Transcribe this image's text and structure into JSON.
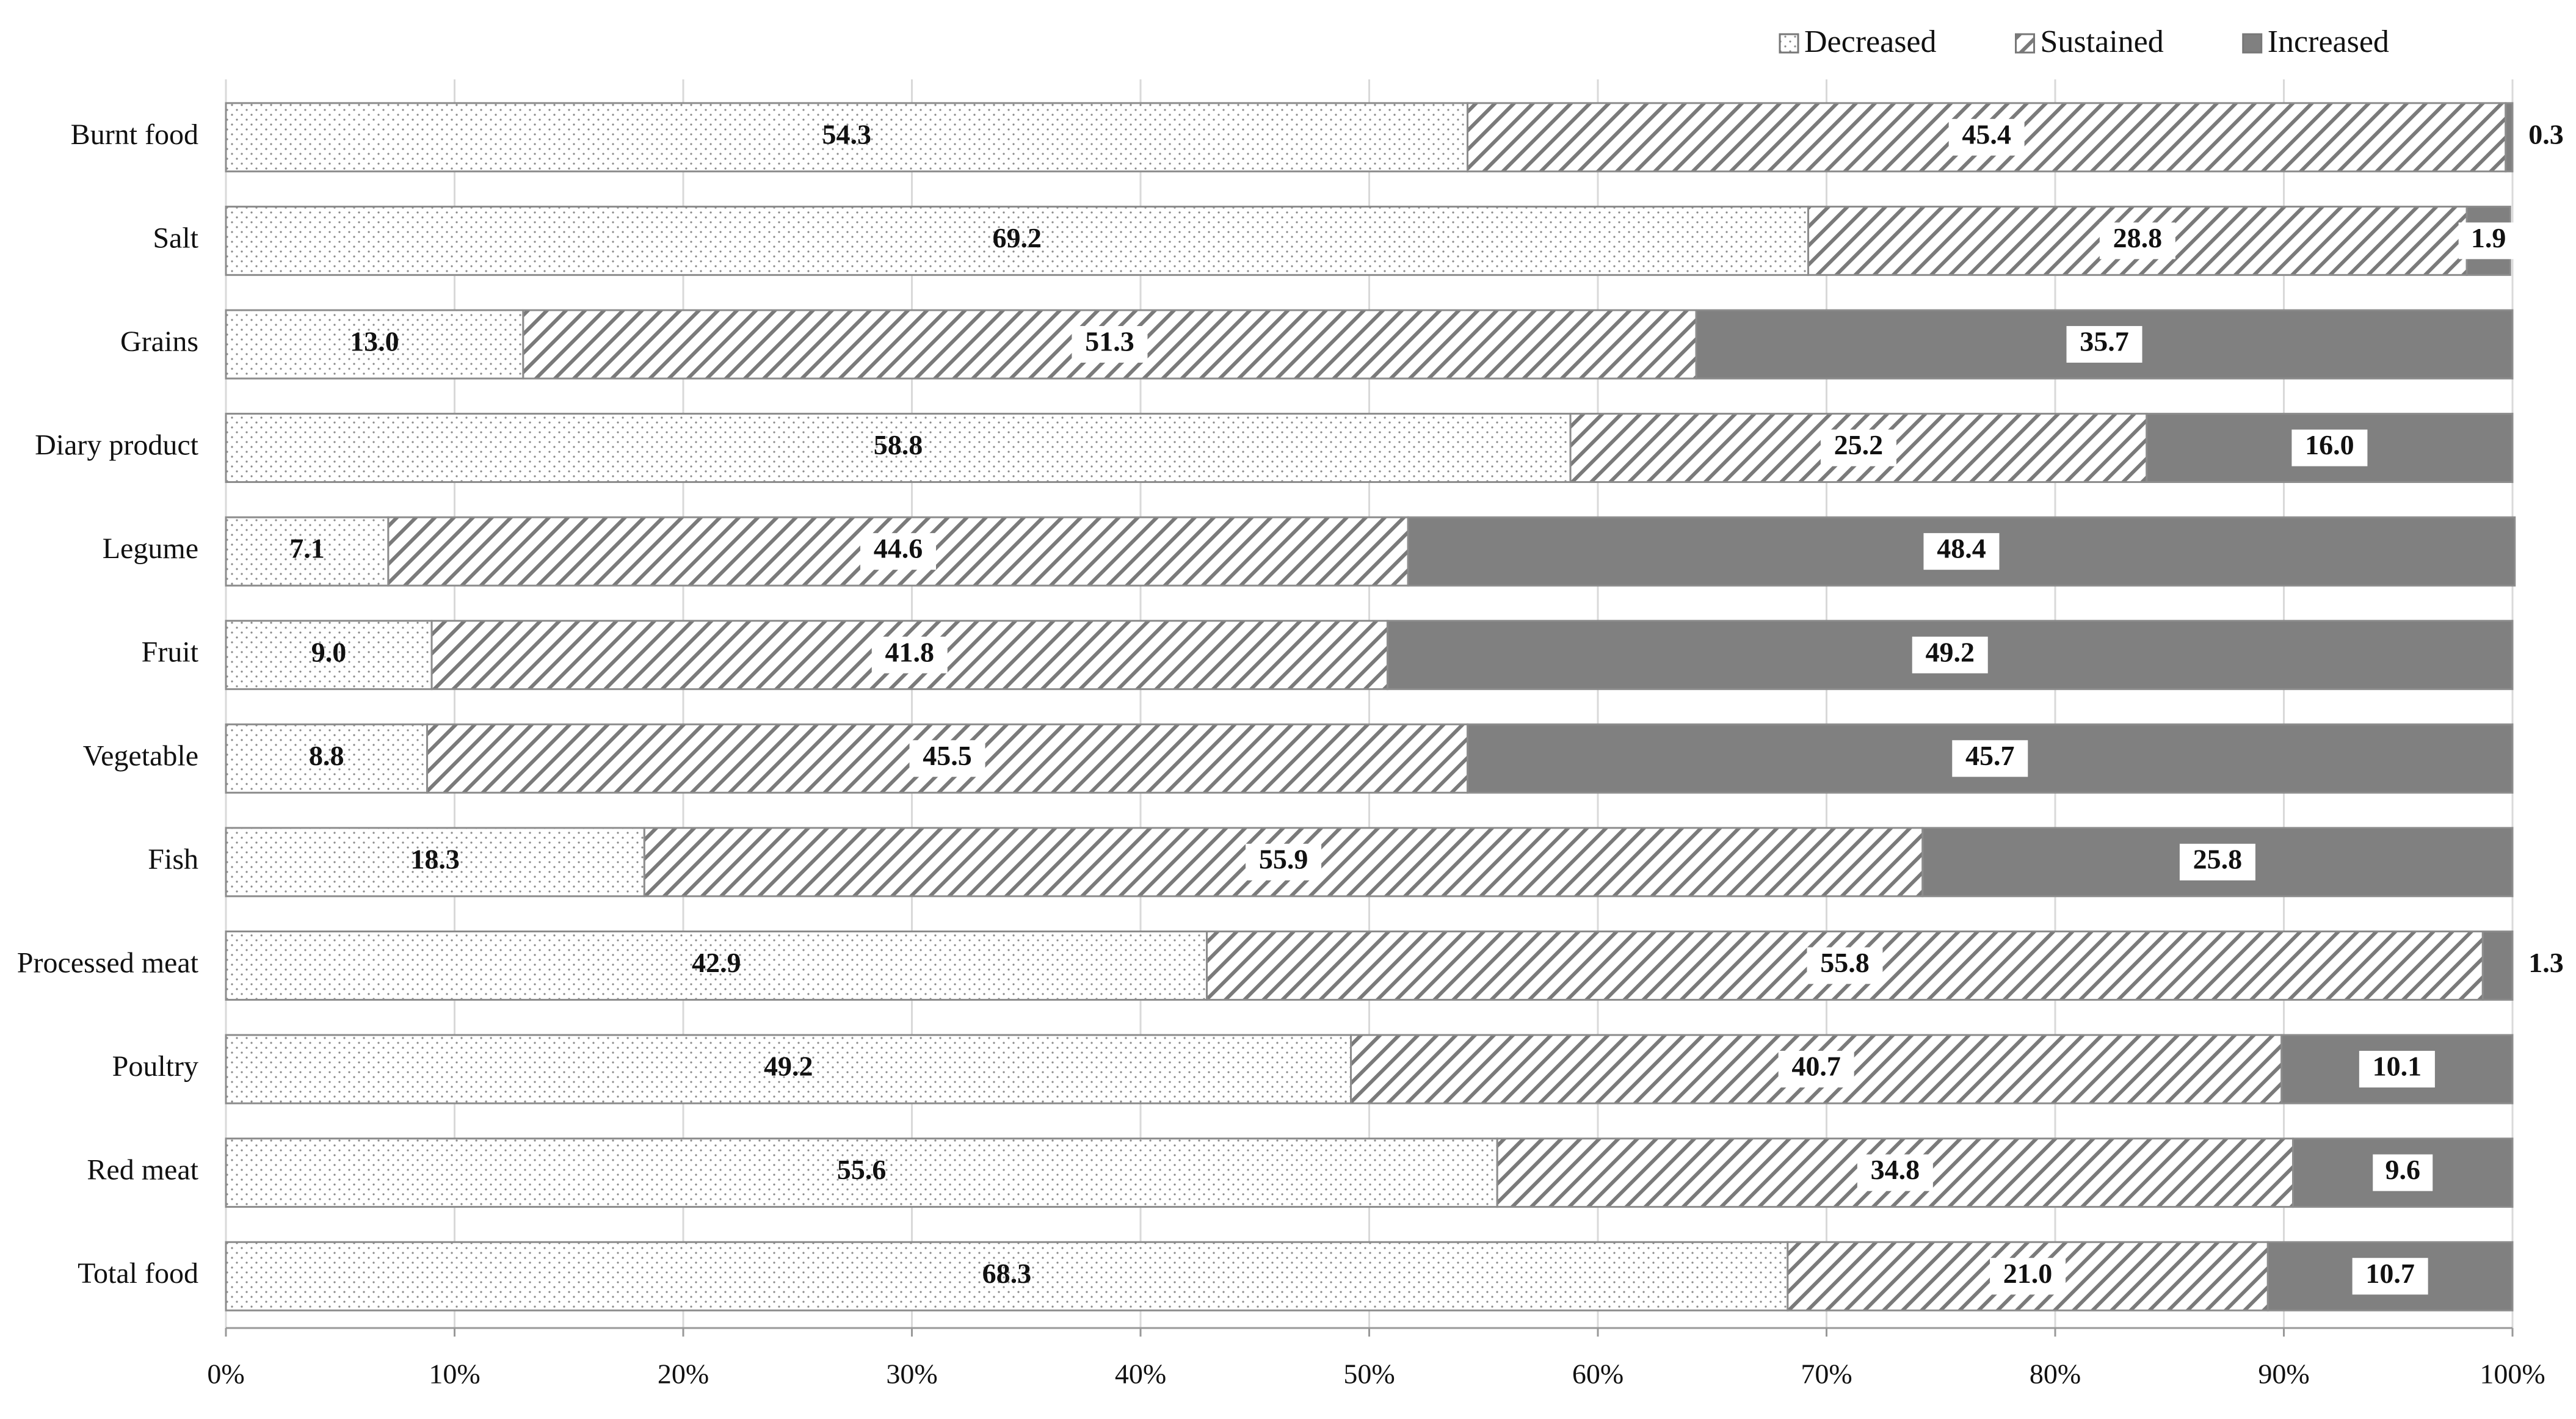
{
  "chart_data": {
    "type": "stacked-bar-horizontal",
    "categories": [
      "Burnt food",
      "Salt",
      "Grains",
      "Diary product",
      "Legume",
      "Fruit",
      "Vegetable",
      "Fish",
      "Processed meat",
      "Poultry",
      "Red meat",
      "Total food"
    ],
    "series": [
      {
        "name": "Decreased",
        "color": "#8a8a8a",
        "pattern": "dots",
        "values": [
          54.3,
          69.2,
          13.0,
          58.8,
          7.1,
          9.0,
          8.8,
          18.3,
          42.9,
          49.2,
          55.6,
          68.3
        ],
        "value_labels": [
          "54.3",
          "69.2",
          "13.0",
          "58.8",
          "7.1",
          "9.0",
          "8.8",
          "18.3",
          "42.9",
          "49.2",
          "55.6",
          "68.3"
        ]
      },
      {
        "name": "Sustained",
        "color": "#7a7a7a",
        "pattern": "hatch",
        "values": [
          45.4,
          28.8,
          51.3,
          25.2,
          44.6,
          41.8,
          45.5,
          55.9,
          55.8,
          40.7,
          34.8,
          21.0
        ],
        "value_labels": [
          "45.4",
          "28.8",
          "51.3",
          "25.2",
          "44.6",
          "41.8",
          "45.5",
          "55.9",
          "55.8",
          "40.7",
          "34.8",
          "21.0"
        ]
      },
      {
        "name": "Increased",
        "color": "#808080",
        "pattern": "solid",
        "values": [
          0.3,
          1.9,
          35.7,
          16.0,
          48.4,
          49.2,
          45.7,
          25.8,
          1.3,
          10.1,
          9.6,
          10.7
        ],
        "value_labels": [
          "0.3",
          "1.9",
          "35.7",
          "16.0",
          "48.4",
          "49.2",
          "45.7",
          "25.8",
          "1.3",
          "10.1",
          "9.6",
          "10.7"
        ]
      }
    ],
    "xlim": [
      0,
      100
    ],
    "xticks": [
      {
        "value": 0,
        "label": "0%"
      },
      {
        "value": 10,
        "label": "10%"
      },
      {
        "value": 20,
        "label": "20%"
      },
      {
        "value": 30,
        "label": "30%"
      },
      {
        "value": 40,
        "label": "40%"
      },
      {
        "value": 50,
        "label": "50%"
      },
      {
        "value": 60,
        "label": "60%"
      },
      {
        "value": 70,
        "label": "70%"
      },
      {
        "value": 80,
        "label": "80%"
      },
      {
        "value": 90,
        "label": "90%"
      },
      {
        "value": 100,
        "label": "100%"
      }
    ],
    "grid": true,
    "legend": "top-right"
  }
}
